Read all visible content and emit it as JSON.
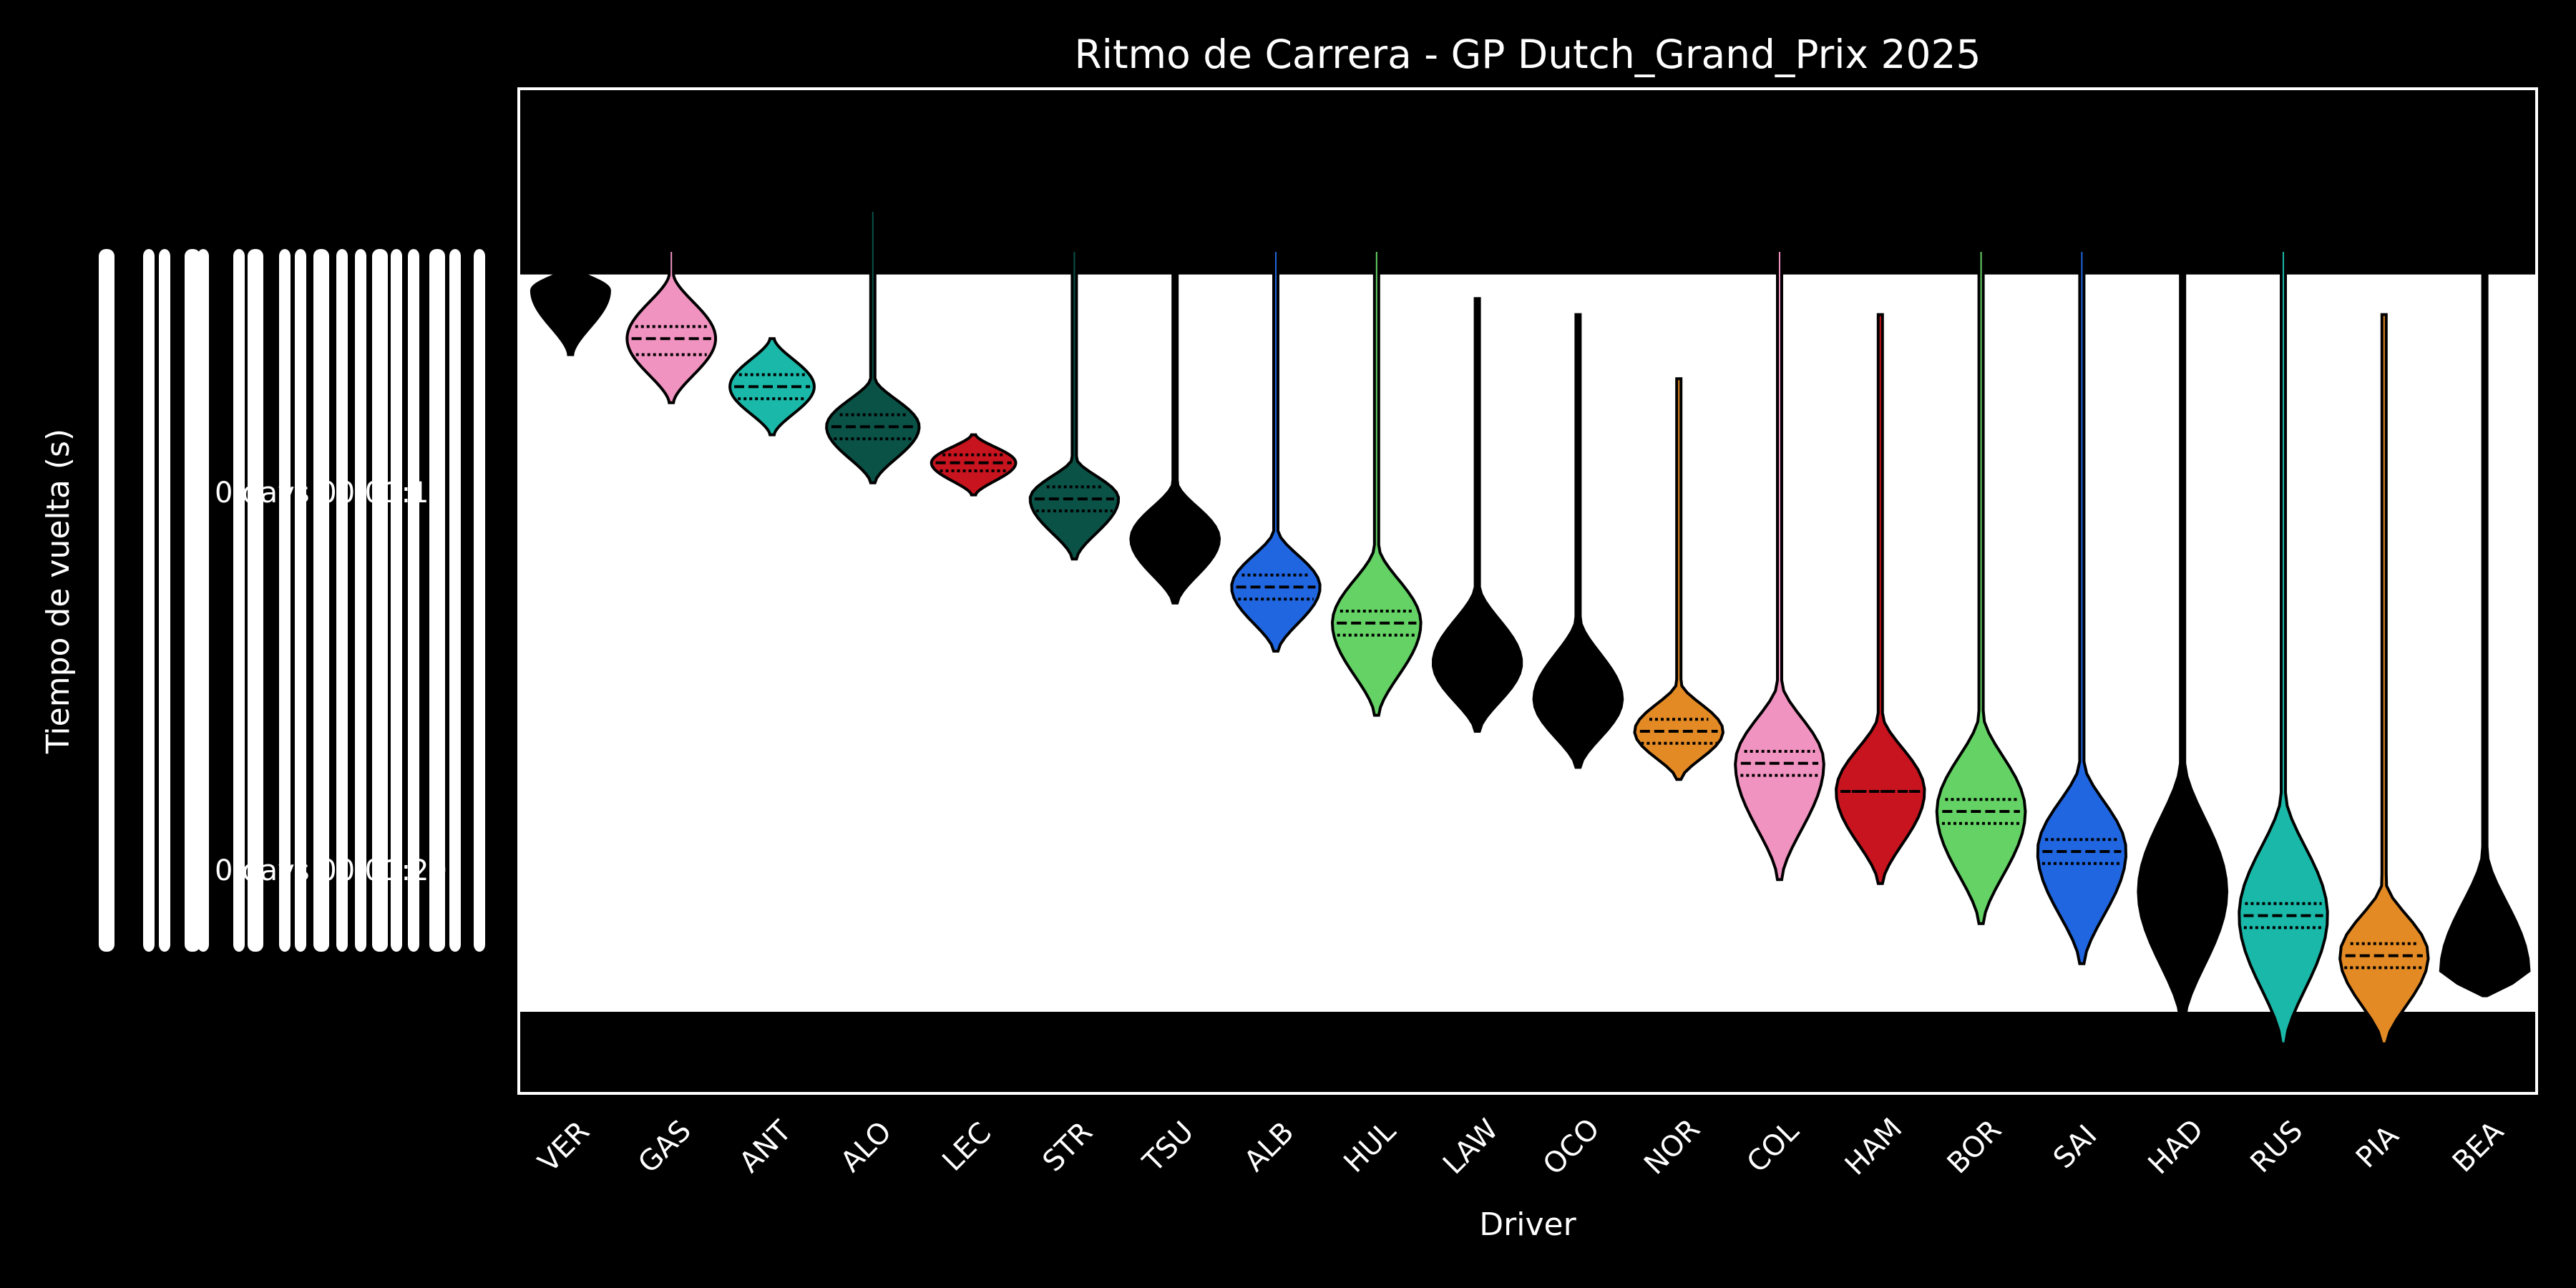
{
  "chart_data": {
    "type": "violin",
    "title": "Ritmo de Carrera - GP Dutch_Grand_Prix 2025",
    "xlabel": "Driver",
    "ylabel": "Tiempo de vuelta (s)",
    "ytick_labels": [
      "0 days 00:01:15",
      "0 days 00:01:20"
    ],
    "categories": [
      "VER",
      "GAS",
      "ANT",
      "ALO",
      "LEC",
      "STR",
      "TSU",
      "ALB",
      "HUL",
      "LAW",
      "OCO",
      "NOR",
      "COL",
      "HAM",
      "BOR",
      "SAI",
      "HAD",
      "RUS",
      "PIA",
      "BEA"
    ],
    "series": [
      {
        "driver": "VER",
        "color": "#000000",
        "median": 73.5,
        "q1": 73.4,
        "q3": 73.6,
        "min": 73.2,
        "max": 74.3,
        "tail_top": 73.2,
        "spread": 0.35
      },
      {
        "driver": "GAS",
        "color": "#f193c0",
        "median": 74.1,
        "q1": 73.95,
        "q3": 74.3,
        "min": 73.3,
        "max": 74.9,
        "tail_top": 73.0,
        "spread": 0.4
      },
      {
        "driver": "ANT",
        "color": "#1ab8a8",
        "median": 74.7,
        "q1": 74.55,
        "q3": 74.85,
        "min": 74.1,
        "max": 75.3,
        "tail_top": 74.1,
        "spread": 0.38
      },
      {
        "driver": "ALO",
        "color": "#0a5146",
        "median": 75.2,
        "q1": 75.05,
        "q3": 75.35,
        "min": 74.6,
        "max": 75.9,
        "tail_top": 72.5,
        "spread": 0.42
      },
      {
        "driver": "LEC",
        "color": "#c8141e",
        "median": 75.65,
        "q1": 75.55,
        "q3": 75.75,
        "min": 75.3,
        "max": 76.05,
        "tail_top": 75.3,
        "spread": 0.38
      },
      {
        "driver": "STR",
        "color": "#0a5146",
        "median": 76.1,
        "q1": 75.95,
        "q3": 76.25,
        "min": 75.6,
        "max": 76.85,
        "tail_top": 73.0,
        "spread": 0.4
      },
      {
        "driver": "TSU",
        "color": "#000000",
        "median": 76.6,
        "q1": 76.45,
        "q3": 76.75,
        "min": 75.9,
        "max": 77.4,
        "tail_top": 73.0,
        "spread": 0.4
      },
      {
        "driver": "ALB",
        "color": "#2066e0",
        "median": 77.2,
        "q1": 77.05,
        "q3": 77.35,
        "min": 76.5,
        "max": 78.0,
        "tail_top": 73.0,
        "spread": 0.4
      },
      {
        "driver": "HUL",
        "color": "#64d264",
        "median": 77.65,
        "q1": 77.5,
        "q3": 77.8,
        "min": 76.7,
        "max": 78.8,
        "tail_top": 73.0,
        "spread": 0.4
      },
      {
        "driver": "LAW",
        "color": "#000000",
        "median": 78.15,
        "q1": 78.0,
        "q3": 78.3,
        "min": 77.2,
        "max": 79.0,
        "tail_top": 73.6,
        "spread": 0.4
      },
      {
        "driver": "OCO",
        "color": "#000000",
        "median": 78.6,
        "q1": 78.45,
        "q3": 78.75,
        "min": 77.6,
        "max": 79.45,
        "tail_top": 73.8,
        "spread": 0.4
      },
      {
        "driver": "NOR",
        "color": "#e38a24",
        "median": 79.0,
        "q1": 78.85,
        "q3": 79.15,
        "min": 78.4,
        "max": 79.6,
        "tail_top": 74.6,
        "spread": 0.4
      },
      {
        "driver": "COL",
        "color": "#f193c0",
        "median": 79.4,
        "q1": 79.25,
        "q3": 79.55,
        "min": 78.4,
        "max": 80.85,
        "tail_top": 73.0,
        "spread": 0.4
      },
      {
        "driver": "HAM",
        "color": "#c8141e",
        "median": 79.75,
        "q1": 79.75,
        "q3": 79.75,
        "min": 78.8,
        "max": 80.9,
        "tail_top": 73.8,
        "spread": 0.4
      },
      {
        "driver": "BOR",
        "color": "#64d264",
        "median": 80.0,
        "q1": 79.85,
        "q3": 80.15,
        "min": 78.8,
        "max": 81.4,
        "tail_top": 73.0,
        "spread": 0.4
      },
      {
        "driver": "SAI",
        "color": "#2066e0",
        "median": 80.5,
        "q1": 80.35,
        "q3": 80.65,
        "min": 79.4,
        "max": 81.9,
        "tail_top": 73.0,
        "spread": 0.4
      },
      {
        "driver": "HAD",
        "color": "#000000",
        "median": 81.0,
        "q1": 80.8,
        "q3": 81.2,
        "min": 79.4,
        "max": 82.6,
        "tail_top": 73.0,
        "spread": 0.4
      },
      {
        "driver": "RUS",
        "color": "#1ab8a8",
        "median": 81.3,
        "q1": 81.15,
        "q3": 81.45,
        "min": 79.8,
        "max": 82.9,
        "tail_top": 73.0,
        "spread": 0.4
      },
      {
        "driver": "PIA",
        "color": "#e38a24",
        "median": 81.8,
        "q1": 81.65,
        "q3": 81.95,
        "min": 80.9,
        "max": 82.9,
        "tail_top": 73.8,
        "spread": 0.4
      },
      {
        "driver": "BEA",
        "color": "#000000",
        "median": 82.0,
        "q1": 81.8,
        "q3": 82.2,
        "min": 80.5,
        "max": 82.3,
        "tail_top": 73.0,
        "spread": 0.4
      }
    ],
    "ylim": [
      71,
      83.5
    ],
    "yband": [
      73.3,
      82.5
    ],
    "grid": false,
    "legend": "none"
  }
}
